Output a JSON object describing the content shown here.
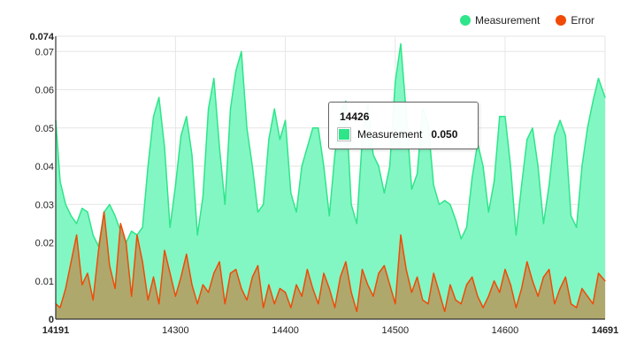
{
  "colors": {
    "measurement": "#2ee58a",
    "measurement_fill": "#82f7c3",
    "error": "#f04a07",
    "error_fill": "#b79a5e",
    "grid": "#e6e6e6"
  },
  "legend": [
    {
      "label": "Measurement",
      "color": "#2ee58a"
    },
    {
      "label": "Error",
      "color": "#f04a07"
    }
  ],
  "tooltip": {
    "title": "14426",
    "series": "Measurement",
    "value": "0.050",
    "color": "#2ee58a"
  },
  "chart_data": {
    "type": "area",
    "title": "",
    "xlabel": "",
    "ylabel": "",
    "xlim": [
      14191,
      14691
    ],
    "ylim": [
      0,
      0.074
    ],
    "x_ticks": [
      "14191",
      "14300",
      "14400",
      "14500",
      "14600",
      "14691"
    ],
    "y_ticks": [
      "0",
      "0.01",
      "0.02",
      "0.03",
      "0.04",
      "0.05",
      "0.06",
      "0.07",
      "0.074"
    ],
    "grid": true,
    "legend_position": "top-right",
    "series": [
      {
        "name": "Measurement",
        "x": [
          14191,
          14195,
          14200,
          14205,
          14210,
          14215,
          14220,
          14225,
          14230,
          14235,
          14240,
          14245,
          14250,
          14255,
          14260,
          14265,
          14270,
          14275,
          14280,
          14285,
          14290,
          14295,
          14300,
          14305,
          14310,
          14315,
          14320,
          14325,
          14330,
          14335,
          14340,
          14345,
          14350,
          14355,
          14360,
          14365,
          14370,
          14375,
          14380,
          14385,
          14390,
          14395,
          14400,
          14405,
          14410,
          14415,
          14420,
          14425,
          14430,
          14435,
          14440,
          14445,
          14450,
          14455,
          14460,
          14465,
          14470,
          14475,
          14480,
          14485,
          14490,
          14495,
          14500,
          14505,
          14510,
          14515,
          14520,
          14525,
          14530,
          14535,
          14540,
          14545,
          14550,
          14555,
          14560,
          14565,
          14570,
          14575,
          14580,
          14585,
          14590,
          14595,
          14600,
          14605,
          14610,
          14615,
          14620,
          14625,
          14630,
          14635,
          14640,
          14645,
          14650,
          14655,
          14660,
          14665,
          14670,
          14675,
          14680,
          14685,
          14691
        ],
        "values": [
          0.052,
          0.036,
          0.03,
          0.027,
          0.025,
          0.029,
          0.028,
          0.022,
          0.019,
          0.028,
          0.03,
          0.027,
          0.023,
          0.02,
          0.023,
          0.022,
          0.024,
          0.04,
          0.053,
          0.058,
          0.045,
          0.024,
          0.035,
          0.048,
          0.053,
          0.043,
          0.022,
          0.032,
          0.055,
          0.063,
          0.045,
          0.03,
          0.055,
          0.065,
          0.07,
          0.05,
          0.04,
          0.028,
          0.03,
          0.047,
          0.055,
          0.047,
          0.052,
          0.033,
          0.028,
          0.04,
          0.045,
          0.05,
          0.05,
          0.04,
          0.027,
          0.043,
          0.054,
          0.057,
          0.03,
          0.025,
          0.047,
          0.056,
          0.043,
          0.04,
          0.033,
          0.04,
          0.062,
          0.072,
          0.054,
          0.034,
          0.038,
          0.055,
          0.051,
          0.035,
          0.03,
          0.031,
          0.03,
          0.026,
          0.021,
          0.024,
          0.037,
          0.046,
          0.04,
          0.028,
          0.036,
          0.053,
          0.053,
          0.04,
          0.022,
          0.035,
          0.047,
          0.05,
          0.04,
          0.025,
          0.035,
          0.048,
          0.052,
          0.048,
          0.027,
          0.024,
          0.04,
          0.05,
          0.057,
          0.063,
          0.058
        ]
      },
      {
        "name": "Error",
        "x": [
          14191,
          14195,
          14200,
          14205,
          14210,
          14215,
          14220,
          14225,
          14230,
          14235,
          14240,
          14245,
          14250,
          14255,
          14260,
          14265,
          14270,
          14275,
          14280,
          14285,
          14290,
          14295,
          14300,
          14305,
          14310,
          14315,
          14320,
          14325,
          14330,
          14335,
          14340,
          14345,
          14350,
          14355,
          14360,
          14365,
          14370,
          14375,
          14380,
          14385,
          14390,
          14395,
          14400,
          14405,
          14410,
          14415,
          14420,
          14425,
          14430,
          14435,
          14440,
          14445,
          14450,
          14455,
          14460,
          14465,
          14470,
          14475,
          14480,
          14485,
          14490,
          14495,
          14500,
          14505,
          14510,
          14515,
          14520,
          14525,
          14530,
          14535,
          14540,
          14545,
          14550,
          14555,
          14560,
          14565,
          14570,
          14575,
          14580,
          14585,
          14590,
          14595,
          14600,
          14605,
          14610,
          14615,
          14620,
          14625,
          14630,
          14635,
          14640,
          14645,
          14650,
          14655,
          14660,
          14665,
          14670,
          14675,
          14680,
          14685,
          14691
        ],
        "values": [
          0.004,
          0.003,
          0.008,
          0.015,
          0.022,
          0.009,
          0.012,
          0.005,
          0.018,
          0.028,
          0.014,
          0.008,
          0.025,
          0.02,
          0.006,
          0.022,
          0.015,
          0.005,
          0.011,
          0.004,
          0.018,
          0.012,
          0.006,
          0.011,
          0.017,
          0.009,
          0.004,
          0.009,
          0.007,
          0.012,
          0.015,
          0.004,
          0.012,
          0.013,
          0.008,
          0.005,
          0.011,
          0.014,
          0.003,
          0.009,
          0.004,
          0.008,
          0.007,
          0.003,
          0.009,
          0.006,
          0.013,
          0.008,
          0.004,
          0.012,
          0.008,
          0.003,
          0.011,
          0.015,
          0.007,
          0.002,
          0.013,
          0.009,
          0.006,
          0.012,
          0.014,
          0.009,
          0.004,
          0.022,
          0.013,
          0.007,
          0.011,
          0.005,
          0.004,
          0.012,
          0.007,
          0.002,
          0.009,
          0.005,
          0.004,
          0.009,
          0.011,
          0.006,
          0.003,
          0.006,
          0.01,
          0.007,
          0.013,
          0.009,
          0.003,
          0.008,
          0.015,
          0.01,
          0.006,
          0.011,
          0.013,
          0.004,
          0.008,
          0.011,
          0.004,
          0.003,
          0.008,
          0.006,
          0.004,
          0.012,
          0.01
        ]
      }
    ]
  }
}
